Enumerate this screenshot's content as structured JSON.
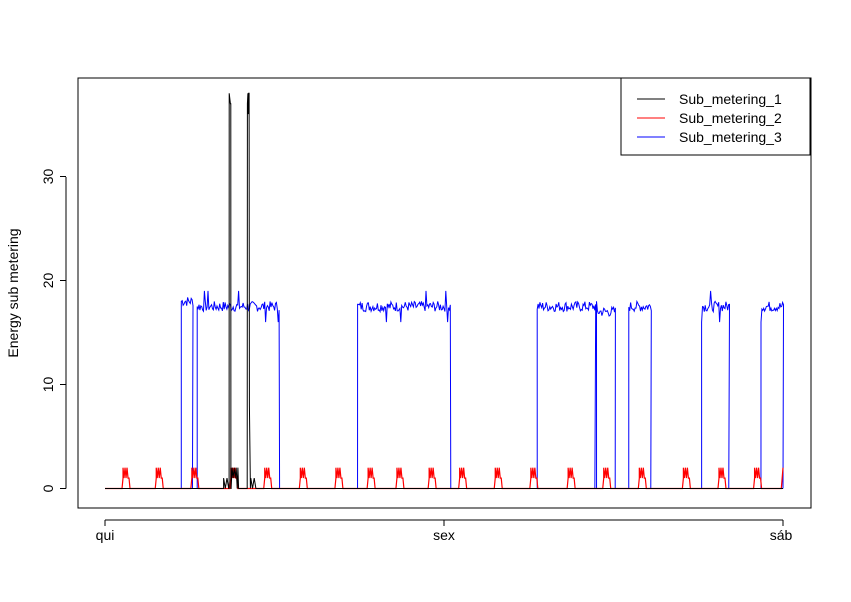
{
  "chart_data": {
    "type": "line",
    "title": "",
    "xlabel": "",
    "ylabel": "Energy sub metering",
    "x_ticks": [
      "qui",
      "sex",
      "sáb"
    ],
    "x_range_days": [
      0,
      2
    ],
    "ylim": [
      0,
      38
    ],
    "y_ticks": [
      0,
      10,
      20,
      30
    ],
    "grid": false,
    "legend_position": "top-right",
    "series": [
      {
        "name": "Sub_metering_1",
        "color": "#000000",
        "points": [
          [
            0,
            0
          ],
          [
            0.35,
            0
          ],
          [
            0.35,
            1
          ],
          [
            0.355,
            0
          ],
          [
            0.36,
            1
          ],
          [
            0.365,
            0
          ],
          [
            0.366,
            0
          ],
          [
            0.3665,
            38
          ],
          [
            0.37,
            37
          ],
          [
            0.371,
            37
          ],
          [
            0.3715,
            0
          ],
          [
            0.372,
            0
          ],
          [
            0.375,
            2
          ],
          [
            0.378,
            1
          ],
          [
            0.381,
            2
          ],
          [
            0.384,
            1
          ],
          [
            0.387,
            2
          ],
          [
            0.39,
            0
          ],
          [
            0.392,
            2
          ],
          [
            0.394,
            0
          ],
          [
            0.4195,
            0
          ],
          [
            0.42,
            37
          ],
          [
            0.4215,
            38
          ],
          [
            0.4225,
            36
          ],
          [
            0.4235,
            38
          ],
          [
            0.425,
            38
          ],
          [
            0.426,
            8
          ],
          [
            0.429,
            0
          ],
          [
            0.43,
            1
          ],
          [
            0.435,
            0
          ],
          [
            0.44,
            1
          ],
          [
            0.445,
            0
          ],
          [
            2.0,
            0
          ]
        ]
      },
      {
        "name": "Sub_metering_2",
        "color": "#ff0000",
        "spike_days": [
          0.062,
          0.16,
          0.265,
          0.38,
          0.48,
          0.585,
          0.69,
          0.785,
          0.87,
          0.965,
          1.055,
          1.16,
          1.265,
          1.375,
          1.48,
          1.585,
          1.715,
          1.82,
          1.925
        ],
        "spike_max": 2,
        "end_value": 2
      },
      {
        "name": "Sub_metering_3",
        "color": "#0000ff",
        "segments": [
          {
            "start": 0.225,
            "end": 0.258,
            "level": 18,
            "peak": 19
          },
          {
            "start": 0.272,
            "end": 0.515,
            "level": 17.5,
            "peak": 19
          },
          {
            "start": 0.745,
            "end": 1.02,
            "level": 17.5,
            "peak": 19
          },
          {
            "start": 1.275,
            "end": 1.445,
            "level": 17.5,
            "peak": 18
          },
          {
            "start": 1.45,
            "end": 1.505,
            "level": 17,
            "peak": 18
          },
          {
            "start": 1.545,
            "end": 1.61,
            "level": 17.5,
            "peak": 18
          },
          {
            "start": 1.76,
            "end": 1.84,
            "level": 17.5,
            "peak": 19
          },
          {
            "start": 1.935,
            "end": 2.0,
            "level": 17.5,
            "peak": 19
          }
        ]
      }
    ]
  }
}
